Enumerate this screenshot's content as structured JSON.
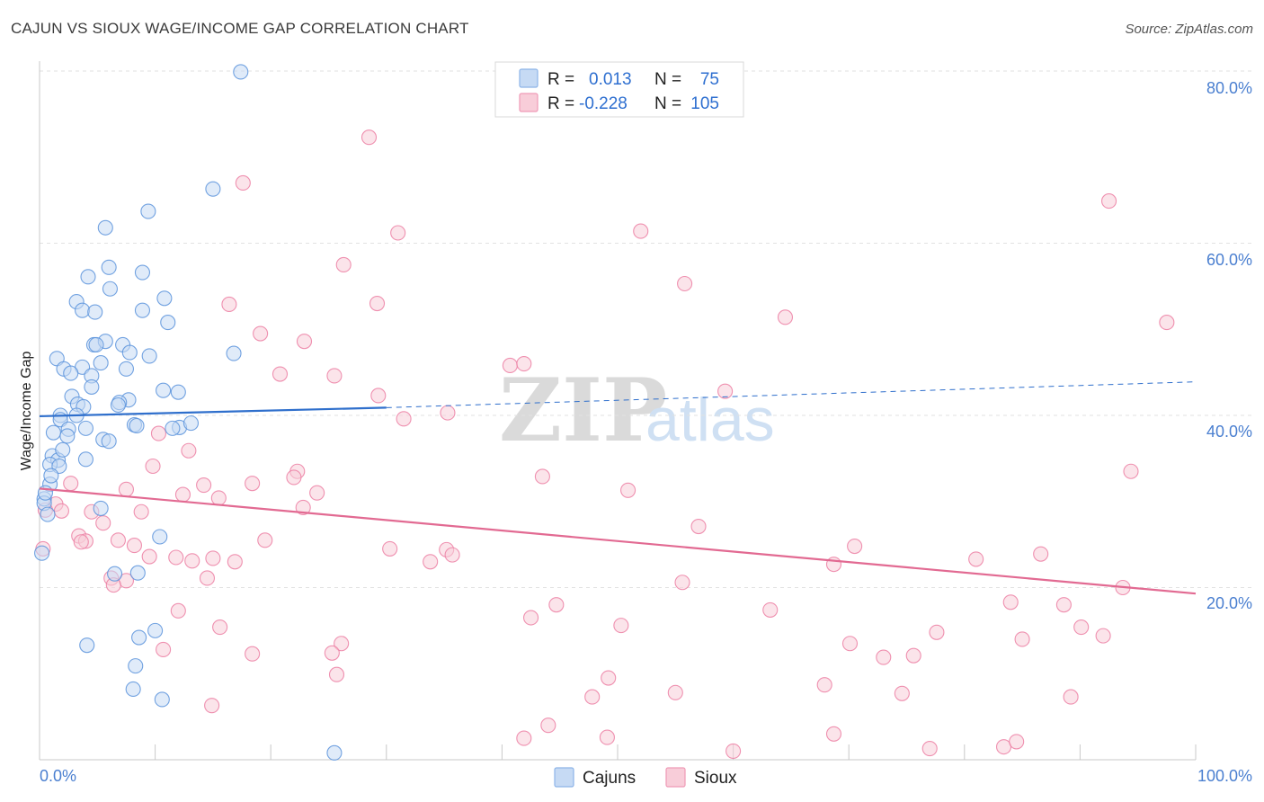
{
  "header": {
    "title": "CAJUN VS SIOUX WAGE/INCOME GAP CORRELATION CHART",
    "source": "Source: ZipAtlas.com"
  },
  "legend": {
    "rows": [
      {
        "r_label": "R =",
        "r_value": "0.013",
        "n_label": "N =",
        "n_value": "75",
        "color": "#8db4e8",
        "fill": "#c6daf4"
      },
      {
        "r_label": "R =",
        "r_value": "-0.228",
        "n_label": "N =",
        "n_value": "105",
        "color": "#ef9ab6",
        "fill": "#f8cdd9"
      }
    ]
  },
  "bottom_legend": {
    "items": [
      {
        "label": "Cajuns",
        "color": "#8db4e8",
        "fill": "#c6daf4"
      },
      {
        "label": "Sioux",
        "color": "#ef9ab6",
        "fill": "#f8cdd9"
      }
    ]
  },
  "watermark": {
    "zip": "ZIP",
    "atlas": "atlas"
  },
  "chart_data": {
    "type": "scatter",
    "title": "CAJUN VS SIOUX WAGE/INCOME GAP CORRELATION CHART",
    "xlabel": "",
    "ylabel": "Wage/Income Gap",
    "xlim": [
      0,
      100
    ],
    "ylim": [
      0,
      80
    ],
    "x_tick_labels": [
      "0.0%",
      "100.0%"
    ],
    "y_ticks": [
      20,
      40,
      60,
      80
    ],
    "y_tick_labels": [
      "20.0%",
      "40.0%",
      "60.0%",
      "80.0%"
    ],
    "series": [
      {
        "name": "Cajuns",
        "color": "#5b93dc",
        "fill": "#c6daf4",
        "trend": {
          "x0": 0,
          "y0": 39.9,
          "x1": 30,
          "y1": 40.9,
          "x_dash_end": 100,
          "y_dash_end": 43.9,
          "color": "#2f6fcc"
        },
        "points": [
          [
            17.4,
            79.9
          ],
          [
            15.0,
            66.3
          ],
          [
            9.4,
            63.7
          ],
          [
            5.7,
            61.8
          ],
          [
            4.2,
            56.1
          ],
          [
            6.0,
            57.2
          ],
          [
            8.9,
            56.6
          ],
          [
            6.1,
            54.7
          ],
          [
            10.8,
            53.6
          ],
          [
            3.2,
            53.2
          ],
          [
            3.7,
            52.2
          ],
          [
            4.8,
            52.0
          ],
          [
            8.9,
            52.2
          ],
          [
            11.1,
            50.8
          ],
          [
            4.7,
            48.2
          ],
          [
            5.7,
            48.6
          ],
          [
            4.9,
            48.2
          ],
          [
            7.2,
            48.2
          ],
          [
            16.8,
            47.2
          ],
          [
            1.5,
            46.6
          ],
          [
            7.8,
            47.3
          ],
          [
            9.5,
            46.9
          ],
          [
            5.3,
            46.1
          ],
          [
            2.1,
            45.4
          ],
          [
            3.7,
            45.6
          ],
          [
            7.5,
            45.4
          ],
          [
            2.7,
            44.9
          ],
          [
            4.5,
            44.6
          ],
          [
            4.5,
            43.3
          ],
          [
            10.7,
            42.9
          ],
          [
            12.0,
            42.7
          ],
          [
            2.8,
            42.2
          ],
          [
            7.7,
            41.8
          ],
          [
            6.9,
            41.5
          ],
          [
            3.3,
            41.3
          ],
          [
            6.8,
            41.2
          ],
          [
            3.8,
            41.0
          ],
          [
            1.8,
            40.0
          ],
          [
            1.8,
            39.5
          ],
          [
            8.2,
            38.9
          ],
          [
            8.4,
            38.8
          ],
          [
            12.1,
            38.6
          ],
          [
            13.1,
            39.1
          ],
          [
            4.0,
            38.5
          ],
          [
            2.5,
            38.4
          ],
          [
            1.2,
            38.0
          ],
          [
            2.4,
            37.6
          ],
          [
            5.5,
            37.2
          ],
          [
            1.1,
            35.3
          ],
          [
            1.6,
            34.8
          ],
          [
            4.0,
            34.9
          ],
          [
            0.9,
            34.3
          ],
          [
            1.7,
            34.1
          ],
          [
            0.9,
            32.0
          ],
          [
            0.4,
            30.3
          ],
          [
            0.4,
            29.8
          ],
          [
            0.7,
            28.5
          ],
          [
            5.3,
            29.2
          ],
          [
            10.4,
            25.9
          ],
          [
            6.5,
            21.6
          ],
          [
            8.5,
            21.7
          ],
          [
            10.0,
            15.0
          ],
          [
            4.1,
            13.3
          ],
          [
            8.6,
            14.2
          ],
          [
            8.3,
            10.9
          ],
          [
            8.1,
            8.2
          ],
          [
            10.6,
            7.0
          ],
          [
            25.5,
            0.8
          ],
          [
            0.2,
            24.0
          ],
          [
            0.5,
            31.0
          ],
          [
            3.2,
            40.0
          ],
          [
            1.0,
            33.0
          ],
          [
            6.0,
            37.0
          ],
          [
            2.0,
            36.0
          ],
          [
            11.5,
            38.5
          ]
        ]
      },
      {
        "name": "Sioux",
        "color": "#ec7fa3",
        "fill": "#f8cdd9",
        "trend": {
          "x0": 0,
          "y0": 31.5,
          "x1": 100,
          "y1": 19.3,
          "color": "#e26a92"
        },
        "points": [
          [
            28.5,
            72.3
          ],
          [
            17.6,
            67.0
          ],
          [
            31.0,
            61.2
          ],
          [
            52.0,
            61.4
          ],
          [
            92.5,
            64.9
          ],
          [
            26.3,
            57.5
          ],
          [
            55.8,
            55.3
          ],
          [
            16.4,
            52.9
          ],
          [
            29.2,
            53.0
          ],
          [
            64.5,
            51.4
          ],
          [
            97.5,
            50.8
          ],
          [
            19.1,
            49.5
          ],
          [
            22.9,
            48.6
          ],
          [
            40.7,
            45.8
          ],
          [
            41.9,
            46.0
          ],
          [
            20.8,
            44.8
          ],
          [
            25.5,
            44.6
          ],
          [
            59.3,
            42.8
          ],
          [
            29.3,
            42.3
          ],
          [
            31.5,
            39.6
          ],
          [
            35.3,
            40.3
          ],
          [
            10.3,
            37.9
          ],
          [
            12.9,
            35.9
          ],
          [
            9.8,
            34.1
          ],
          [
            22.3,
            33.5
          ],
          [
            94.4,
            33.5
          ],
          [
            22.0,
            32.8
          ],
          [
            43.5,
            32.9
          ],
          [
            2.7,
            32.1
          ],
          [
            18.4,
            32.1
          ],
          [
            14.2,
            31.9
          ],
          [
            24.0,
            31.0
          ],
          [
            7.5,
            31.4
          ],
          [
            50.9,
            31.3
          ],
          [
            12.4,
            30.8
          ],
          [
            15.5,
            30.4
          ],
          [
            1.4,
            29.7
          ],
          [
            22.8,
            29.3
          ],
          [
            1.9,
            28.9
          ],
          [
            4.5,
            28.8
          ],
          [
            8.8,
            28.8
          ],
          [
            0.5,
            29.0
          ],
          [
            5.5,
            27.5
          ],
          [
            57.0,
            27.1
          ],
          [
            3.4,
            26.0
          ],
          [
            4.0,
            25.4
          ],
          [
            3.6,
            25.3
          ],
          [
            6.8,
            25.5
          ],
          [
            19.5,
            25.5
          ],
          [
            8.2,
            24.9
          ],
          [
            30.3,
            24.5
          ],
          [
            35.2,
            24.4
          ],
          [
            15.0,
            23.4
          ],
          [
            16.9,
            23.0
          ],
          [
            70.5,
            24.8
          ],
          [
            35.7,
            23.8
          ],
          [
            9.5,
            23.6
          ],
          [
            11.8,
            23.5
          ],
          [
            13.2,
            23.1
          ],
          [
            33.8,
            23.0
          ],
          [
            68.7,
            22.7
          ],
          [
            81.0,
            23.3
          ],
          [
            86.6,
            23.9
          ],
          [
            6.2,
            21.1
          ],
          [
            7.5,
            20.8
          ],
          [
            14.5,
            21.1
          ],
          [
            55.6,
            20.6
          ],
          [
            93.7,
            20.0
          ],
          [
            6.4,
            20.3
          ],
          [
            0.3,
            24.5
          ],
          [
            12.0,
            17.3
          ],
          [
            44.7,
            18.0
          ],
          [
            42.5,
            16.5
          ],
          [
            63.2,
            17.4
          ],
          [
            84.0,
            18.3
          ],
          [
            88.6,
            18.0
          ],
          [
            50.3,
            15.6
          ],
          [
            15.6,
            15.4
          ],
          [
            77.6,
            14.8
          ],
          [
            90.1,
            15.4
          ],
          [
            92.0,
            14.4
          ],
          [
            26.1,
            13.5
          ],
          [
            25.3,
            12.4
          ],
          [
            18.4,
            12.3
          ],
          [
            10.7,
            12.8
          ],
          [
            70.1,
            13.5
          ],
          [
            73.0,
            11.9
          ],
          [
            75.6,
            12.1
          ],
          [
            85.0,
            14.0
          ],
          [
            25.7,
            9.9
          ],
          [
            49.2,
            9.5
          ],
          [
            67.9,
            8.7
          ],
          [
            55.0,
            7.8
          ],
          [
            74.6,
            7.7
          ],
          [
            89.2,
            7.3
          ],
          [
            47.8,
            7.3
          ],
          [
            14.9,
            6.3
          ],
          [
            41.9,
            2.5
          ],
          [
            49.1,
            2.6
          ],
          [
            68.7,
            3.0
          ],
          [
            77.0,
            1.3
          ],
          [
            83.4,
            1.5
          ],
          [
            84.5,
            2.1
          ],
          [
            60.0,
            1.0
          ],
          [
            44.0,
            4.0
          ]
        ]
      }
    ]
  }
}
